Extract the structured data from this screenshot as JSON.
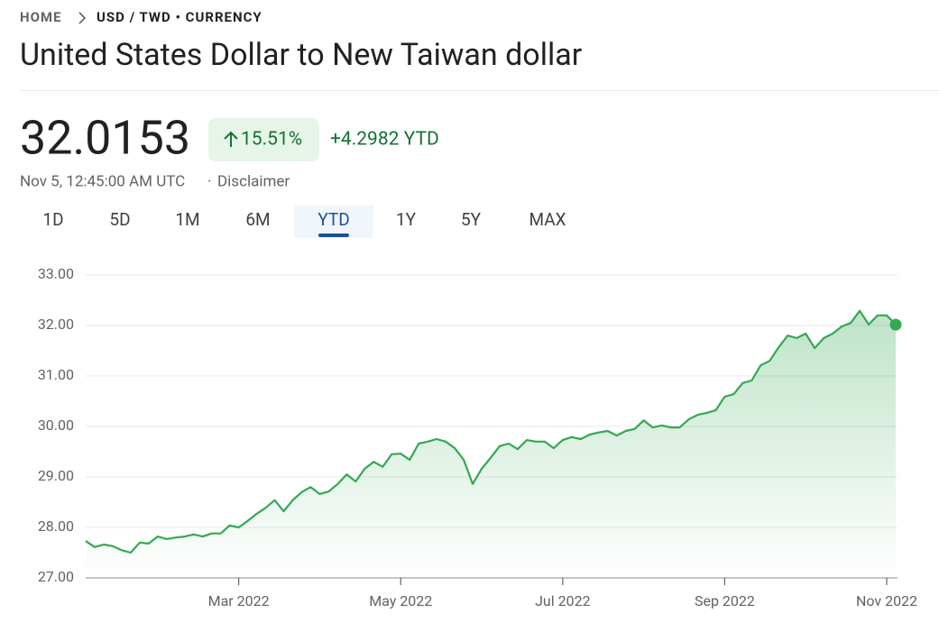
{
  "breadcrumb": {
    "home": "HOME",
    "current": "USD / TWD • CURRENCY"
  },
  "title": "United States Dollar to New Taiwan dollar",
  "price": "32.0153",
  "change_percent": "15.51%",
  "change_ytd": "+4.2982 YTD",
  "timestamp": "Nov 5, 12:45:00 AM UTC",
  "disclaimer": "Disclaimer",
  "tabs": [
    "1D",
    "5D",
    "1M",
    "6M",
    "YTD",
    "1Y",
    "5Y",
    "MAX"
  ],
  "active_tab": "YTD",
  "chart_data": {
    "type": "line",
    "categories": [
      null,
      null,
      null,
      null,
      null,
      null,
      null,
      null,
      null,
      null,
      null,
      null,
      null,
      null,
      null,
      null,
      null,
      "Mar 2022",
      null,
      null,
      null,
      null,
      null,
      null,
      null,
      null,
      null,
      null,
      null,
      null,
      null,
      null,
      null,
      null,
      null,
      "May 2022",
      null,
      null,
      null,
      null,
      null,
      null,
      null,
      null,
      null,
      null,
      null,
      null,
      null,
      null,
      null,
      null,
      null,
      "Jul 2022",
      null,
      null,
      null,
      null,
      null,
      null,
      null,
      null,
      null,
      null,
      null,
      null,
      null,
      null,
      null,
      null,
      null,
      "Sep 2022",
      null,
      null,
      null,
      null,
      null,
      null,
      null,
      null,
      null,
      null,
      null,
      null,
      null,
      null,
      null,
      null,
      null,
      "Nov 2022",
      null
    ],
    "series": [
      {
        "name": "USD / TWD",
        "color": "#34a853",
        "values": [
          27.73,
          27.61,
          27.66,
          27.63,
          27.55,
          27.5,
          27.7,
          27.68,
          27.82,
          27.77,
          27.8,
          27.82,
          27.86,
          27.82,
          27.88,
          27.88,
          28.04,
          28.0,
          28.13,
          28.27,
          28.39,
          28.54,
          28.32,
          28.54,
          28.7,
          28.8,
          28.66,
          28.71,
          28.86,
          29.05,
          28.91,
          29.16,
          29.3,
          29.2,
          29.45,
          29.46,
          29.34,
          29.66,
          29.7,
          29.75,
          29.7,
          29.57,
          29.34,
          28.86,
          29.16,
          29.38,
          29.61,
          29.66,
          29.55,
          29.73,
          29.7,
          29.7,
          29.57,
          29.73,
          29.79,
          29.75,
          29.84,
          29.88,
          29.91,
          29.82,
          29.91,
          29.95,
          30.12,
          29.98,
          30.02,
          29.98,
          29.98,
          30.14,
          30.23,
          30.27,
          30.32,
          30.59,
          30.64,
          30.86,
          30.91,
          31.21,
          31.3,
          31.57,
          31.8,
          31.75,
          31.84,
          31.55,
          31.75,
          31.84,
          31.98,
          32.05,
          32.29,
          32.02,
          32.2,
          32.2,
          32.0153
        ]
      }
    ],
    "ylim": [
      27,
      33
    ],
    "yticks": [
      {
        "value": 27,
        "label": "27.00"
      },
      {
        "value": 28,
        "label": "28.00"
      },
      {
        "value": 29,
        "label": "29.00"
      },
      {
        "value": 30,
        "label": "30.00"
      },
      {
        "value": 31,
        "label": "31.00"
      },
      {
        "value": 32,
        "label": "32.00"
      },
      {
        "value": 33,
        "label": "33.00"
      }
    ],
    "grid": true
  }
}
